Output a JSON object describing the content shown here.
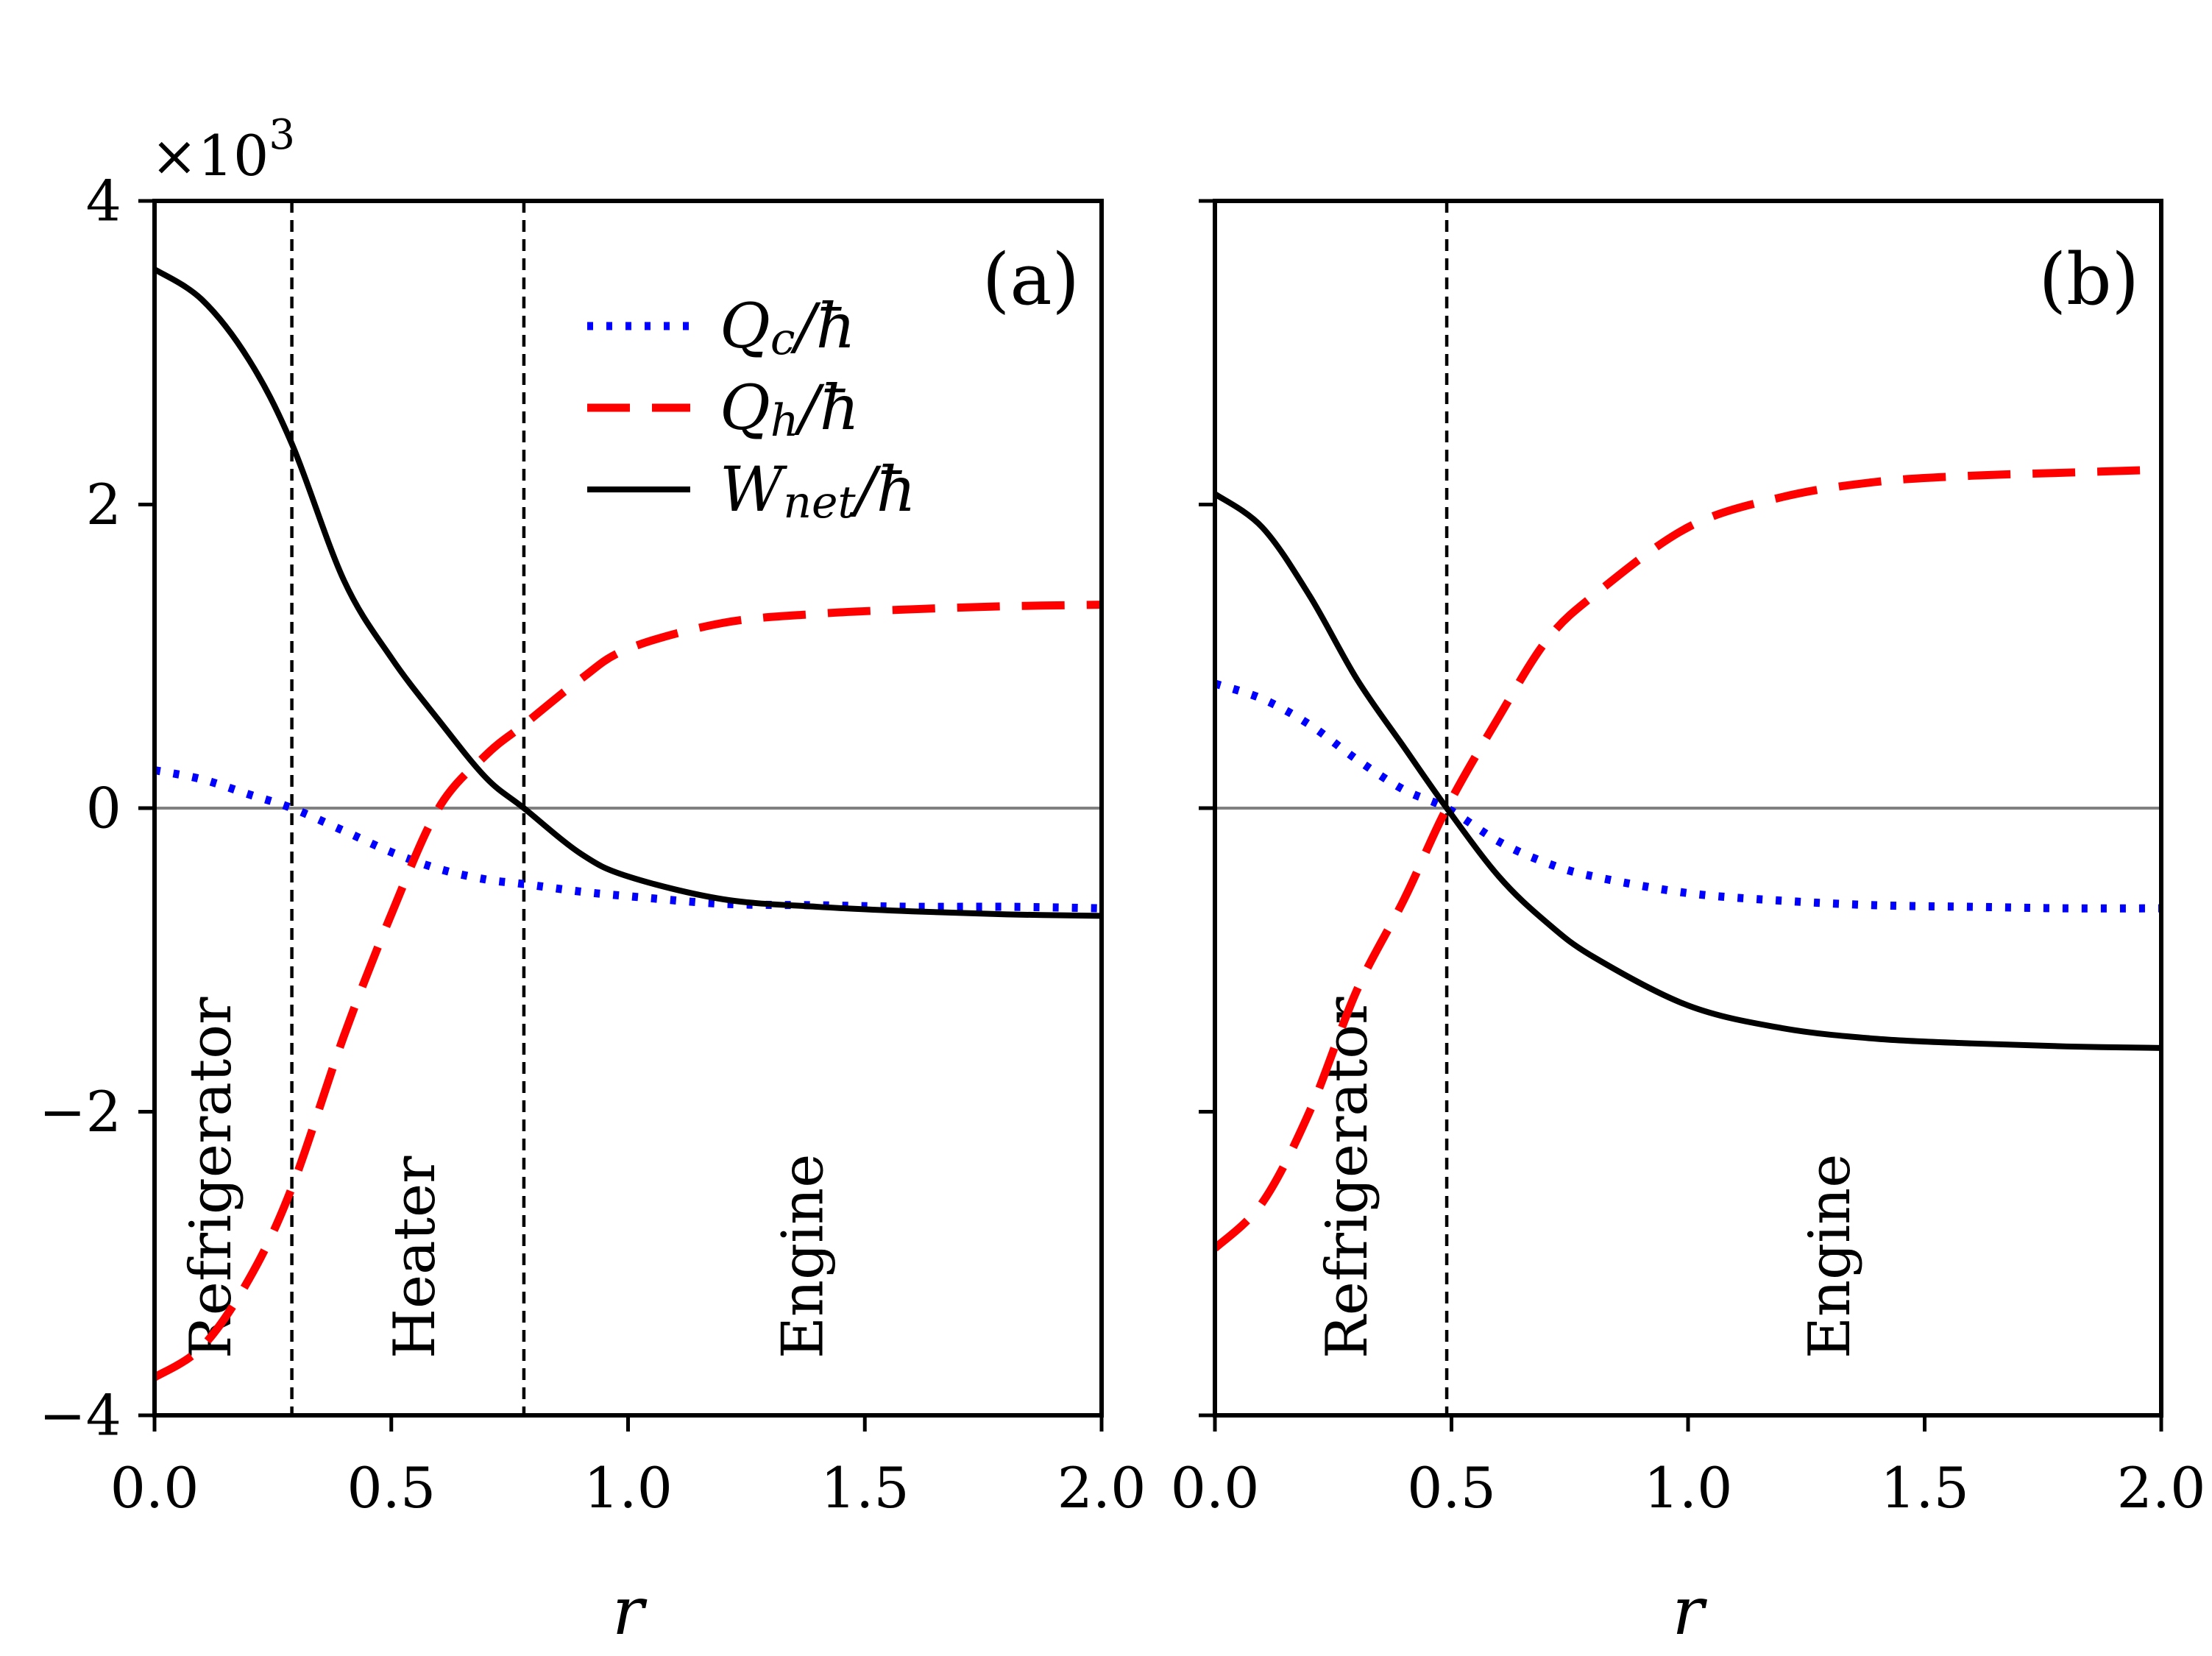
{
  "chart_data": [
    {
      "type": "line",
      "panel_label": "(a)",
      "xlabel": "r",
      "ylabel": "",
      "xlim": [
        0.0,
        2.0
      ],
      "ylim": [
        -4,
        4
      ],
      "y_multiplier": "×10",
      "y_multiplier_exp": "3",
      "x_ticks": [
        "0.0",
        "0.5",
        "1.0",
        "1.5",
        "2.0"
      ],
      "y_ticks": [
        "−4",
        "−2",
        "0",
        "2",
        "4"
      ],
      "zero_line": true,
      "boundaries": [
        0.29,
        0.78
      ],
      "regions": [
        {
          "label": "Refrigerator",
          "x": 0.12
        },
        {
          "label": "Heater",
          "x": 0.55
        },
        {
          "label": "Engine",
          "x": 1.37
        }
      ],
      "legend": {
        "placement": "upper-center",
        "entries": [
          {
            "series": "Qc",
            "base": "Q",
            "sub": "c",
            "suffix": "/ħ"
          },
          {
            "series": "Qh",
            "base": "Q",
            "sub": "h",
            "suffix": "/ħ"
          },
          {
            "series": "Wnet",
            "base": "W",
            "sub": "net",
            "suffix": "/ħ"
          }
        ]
      },
      "x": [
        0.0,
        0.1,
        0.2,
        0.29,
        0.4,
        0.5,
        0.6,
        0.7,
        0.78,
        0.9,
        1.0,
        1.2,
        1.4,
        1.6,
        1.8,
        2.0
      ],
      "series": [
        {
          "name": "Qc/ħ",
          "style": "dotted",
          "color": "#0000ff",
          "values": [
            0.25,
            0.19,
            0.09,
            0.0,
            -0.15,
            -0.29,
            -0.4,
            -0.47,
            -0.5,
            -0.55,
            -0.58,
            -0.63,
            -0.64,
            -0.65,
            -0.65,
            -0.66
          ]
        },
        {
          "name": "Qh/ħ",
          "style": "dashed",
          "color": "#ff0000",
          "values": [
            -3.75,
            -3.55,
            -3.1,
            -2.5,
            -1.5,
            -0.7,
            0.0,
            0.35,
            0.55,
            0.85,
            1.05,
            1.22,
            1.28,
            1.31,
            1.33,
            1.34
          ]
        },
        {
          "name": "Wnet/ħ",
          "style": "solid",
          "color": "#000000",
          "values": [
            3.55,
            3.35,
            2.95,
            2.4,
            1.5,
            0.99,
            0.58,
            0.2,
            0.0,
            -0.3,
            -0.45,
            -0.6,
            -0.65,
            -0.68,
            -0.7,
            -0.71
          ]
        }
      ]
    },
    {
      "type": "line",
      "panel_label": "(b)",
      "xlabel": "r",
      "ylabel": "",
      "xlim": [
        0.0,
        2.0
      ],
      "ylim": [
        -4,
        4
      ],
      "x_ticks": [
        "0.0",
        "0.5",
        "1.0",
        "1.5",
        "2.0"
      ],
      "zero_line": true,
      "boundaries": [
        0.49
      ],
      "regions": [
        {
          "label": "Refrigerator",
          "x": 0.28
        },
        {
          "label": "Engine",
          "x": 1.3
        }
      ],
      "x": [
        0.0,
        0.1,
        0.2,
        0.3,
        0.4,
        0.49,
        0.6,
        0.7,
        0.8,
        1.0,
        1.2,
        1.4,
        1.6,
        1.8,
        2.0
      ],
      "series": [
        {
          "name": "Qc/ħ",
          "style": "dotted",
          "color": "#0000ff",
          "values": [
            0.82,
            0.72,
            0.55,
            0.32,
            0.12,
            0.0,
            -0.22,
            -0.36,
            -0.45,
            -0.56,
            -0.61,
            -0.64,
            -0.65,
            -0.66,
            -0.66
          ]
        },
        {
          "name": "Qh/ħ",
          "style": "dashed",
          "color": "#ff0000",
          "values": [
            -2.9,
            -2.6,
            -2.0,
            -1.2,
            -0.6,
            0.0,
            0.6,
            1.1,
            1.4,
            1.85,
            2.05,
            2.15,
            2.19,
            2.21,
            2.23
          ]
        },
        {
          "name": "Wnet/ħ",
          "style": "solid",
          "color": "#000000",
          "values": [
            2.07,
            1.85,
            1.4,
            0.85,
            0.4,
            0.0,
            -0.45,
            -0.75,
            -0.98,
            -1.3,
            -1.45,
            -1.52,
            -1.55,
            -1.57,
            -1.58
          ]
        }
      ]
    }
  ]
}
